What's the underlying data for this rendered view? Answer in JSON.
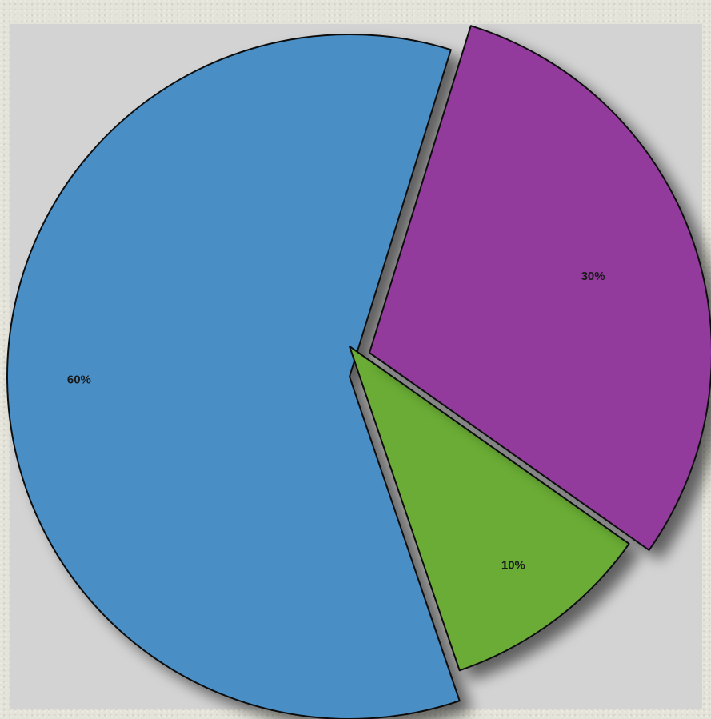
{
  "chart_data": {
    "type": "pie",
    "exploded": true,
    "legend": "none",
    "slices": [
      {
        "value": 60,
        "label": "60%",
        "color": "#4a8fc6"
      },
      {
        "value": 10,
        "label": "10%",
        "color": "#6aac36"
      },
      {
        "value": 30,
        "label": "30%",
        "color": "#923a9d"
      }
    ]
  }
}
